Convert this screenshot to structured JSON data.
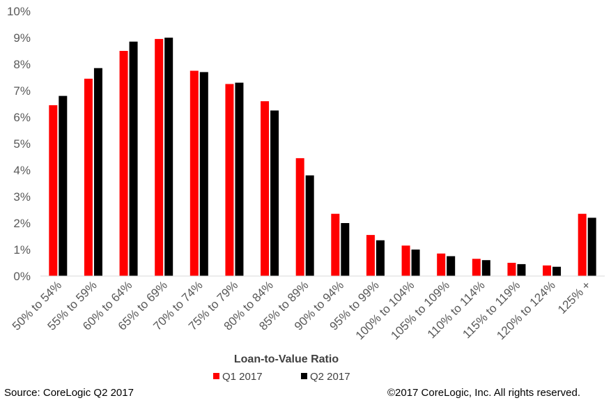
{
  "chart_data": {
    "type": "bar",
    "xlabel": "Loan-to-Value Ratio",
    "ylabel": "",
    "ylim": [
      0,
      10
    ],
    "yticks": [
      "0%",
      "1%",
      "2%",
      "3%",
      "4%",
      "5%",
      "6%",
      "7%",
      "8%",
      "9%",
      "10%"
    ],
    "legend_position": "bottom",
    "categories": [
      "50% to 54%",
      "55% to 59%",
      "60% to 64%",
      "65% to 69%",
      "70% to 74%",
      "75% to 79%",
      "80% to 84%",
      "85% to 89%",
      "90% to 94%",
      "95% to 99%",
      "100% to 104%",
      "105% to 109%",
      "110% to 114%",
      "115% to 119%",
      "120% to 124%",
      "125% +"
    ],
    "series": [
      {
        "name": "Q1 2017",
        "color": "#ff0000",
        "values": [
          6.45,
          7.45,
          8.5,
          8.95,
          7.75,
          7.25,
          6.6,
          4.45,
          2.35,
          1.55,
          1.15,
          0.85,
          0.65,
          0.5,
          0.4,
          2.35
        ]
      },
      {
        "name": "Q2 2017",
        "color": "#000000",
        "values": [
          6.8,
          7.85,
          8.85,
          9.0,
          7.7,
          7.3,
          6.25,
          3.8,
          2.0,
          1.35,
          1.0,
          0.75,
          0.6,
          0.45,
          0.35,
          2.2
        ]
      }
    ],
    "grid": false
  },
  "footer": {
    "source": "Source: CoreLogic Q2 2017",
    "copyright": "©2017 CoreLogic, Inc. All rights reserved."
  }
}
